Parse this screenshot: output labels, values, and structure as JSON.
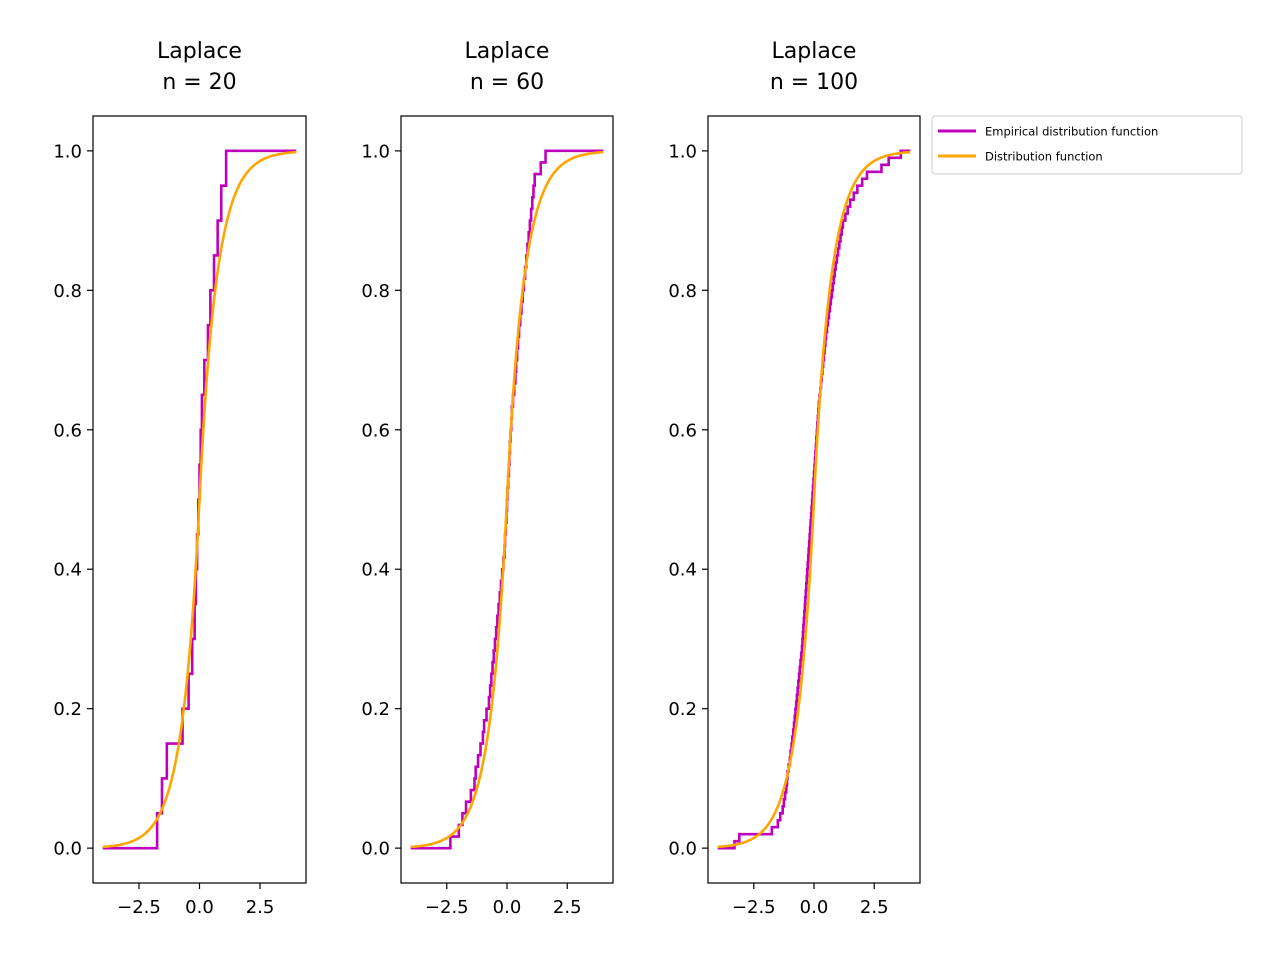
{
  "colors": {
    "ecdf": "#bf00bf",
    "cdf": "#ffa500",
    "axes": "#000000",
    "legend_border": "#cccccc"
  },
  "legend": {
    "placement": "outside-right-top",
    "entries": [
      "Empirical distribution function",
      "Distribution function"
    ]
  },
  "chart_data": [
    {
      "type": "line",
      "title": "Laplace\nn = 20",
      "title_lines": [
        "Laplace",
        "n = 20"
      ],
      "xlabel": "",
      "ylabel": "",
      "xlim": [
        -4.4,
        4.4
      ],
      "ylim": [
        -0.05,
        1.05
      ],
      "xticks": [
        -2.5,
        0.0,
        2.5
      ],
      "xtick_labels": [
        "−2.5",
        "0.0",
        "2.5"
      ],
      "yticks": [
        0.0,
        0.2,
        0.4,
        0.6,
        0.8,
        1.0
      ],
      "ytick_labels": [
        "0.0",
        "0.2",
        "0.4",
        "0.6",
        "0.8",
        "1.0"
      ],
      "grid": false,
      "x_range": [
        -4,
        4
      ],
      "series": [
        {
          "name": "Empirical distribution function",
          "kind": "step",
          "sample": [
            -1.75,
            -1.55,
            -1.35,
            -0.7,
            -0.45,
            -0.3,
            -0.2,
            -0.15,
            -0.1,
            -0.05,
            0.0,
            0.05,
            0.1,
            0.2,
            0.35,
            0.45,
            0.6,
            0.75,
            0.9,
            1.1
          ]
        },
        {
          "name": "Distribution function",
          "kind": "laplace_cdf",
          "loc": 0,
          "scale": 0.7071
        }
      ]
    },
    {
      "type": "line",
      "title": "Laplace\nn = 60",
      "title_lines": [
        "Laplace",
        "n = 60"
      ],
      "xlabel": "",
      "ylabel": "",
      "xlim": [
        -4.4,
        4.4
      ],
      "ylim": [
        -0.05,
        1.05
      ],
      "xticks": [
        -2.5,
        0.0,
        2.5
      ],
      "xtick_labels": [
        "−2.5",
        "0.0",
        "2.5"
      ],
      "yticks": [
        0.0,
        0.2,
        0.4,
        0.6,
        0.8,
        1.0
      ],
      "ytick_labels": [
        "0.0",
        "0.2",
        "0.4",
        "0.6",
        "0.8",
        "1.0"
      ],
      "grid": false,
      "x_range": [
        -4,
        4
      ],
      "series": [
        {
          "name": "Empirical distribution function",
          "kind": "step",
          "sample": [
            -2.35,
            -2.0,
            -1.85,
            -1.7,
            -1.5,
            -1.35,
            -1.3,
            -1.2,
            -1.1,
            -1.0,
            -0.95,
            -0.85,
            -0.75,
            -0.7,
            -0.65,
            -0.6,
            -0.55,
            -0.5,
            -0.45,
            -0.4,
            -0.35,
            -0.3,
            -0.25,
            -0.2,
            -0.15,
            -0.1,
            -0.08,
            -0.05,
            -0.02,
            0.0,
            0.02,
            0.05,
            0.08,
            0.1,
            0.12,
            0.15,
            0.18,
            0.2,
            0.25,
            0.3,
            0.35,
            0.38,
            0.42,
            0.46,
            0.5,
            0.55,
            0.6,
            0.65,
            0.7,
            0.75,
            0.8,
            0.85,
            0.9,
            0.95,
            1.0,
            1.05,
            1.1,
            1.15,
            1.4,
            1.6
          ]
        },
        {
          "name": "Distribution function",
          "kind": "laplace_cdf",
          "loc": 0,
          "scale": 0.7071
        }
      ]
    },
    {
      "type": "line",
      "title": "Laplace\nn = 100",
      "title_lines": [
        "Laplace",
        "n = 100"
      ],
      "xlabel": "",
      "ylabel": "",
      "xlim": [
        -4.4,
        4.4
      ],
      "ylim": [
        -0.05,
        1.05
      ],
      "xticks": [
        -2.5,
        0.0,
        2.5
      ],
      "xtick_labels": [
        "−2.5",
        "0.0",
        "2.5"
      ],
      "yticks": [
        0.0,
        0.2,
        0.4,
        0.6,
        0.8,
        1.0
      ],
      "ytick_labels": [
        "0.0",
        "0.2",
        "0.4",
        "0.6",
        "0.8",
        "1.0"
      ],
      "grid": false,
      "x_range": [
        -4,
        4
      ],
      "series": [
        {
          "name": "Empirical distribution function",
          "kind": "step",
          "sample": [
            -3.3,
            -3.1,
            -1.75,
            -1.5,
            -1.4,
            -1.3,
            -1.25,
            -1.2,
            -1.15,
            -1.12,
            -1.1,
            -1.05,
            -1.0,
            -0.97,
            -0.93,
            -0.9,
            -0.86,
            -0.83,
            -0.8,
            -0.77,
            -0.74,
            -0.71,
            -0.68,
            -0.65,
            -0.62,
            -0.59,
            -0.56,
            -0.53,
            -0.5,
            -0.48,
            -0.46,
            -0.44,
            -0.42,
            -0.4,
            -0.38,
            -0.36,
            -0.34,
            -0.32,
            -0.3,
            -0.28,
            -0.26,
            -0.24,
            -0.22,
            -0.2,
            -0.18,
            -0.16,
            -0.14,
            -0.12,
            -0.1,
            -0.08,
            -0.06,
            -0.04,
            -0.02,
            0.0,
            0.02,
            0.04,
            0.06,
            0.08,
            0.1,
            0.12,
            0.14,
            0.16,
            0.18,
            0.2,
            0.23,
            0.26,
            0.29,
            0.32,
            0.35,
            0.38,
            0.41,
            0.44,
            0.47,
            0.5,
            0.54,
            0.58,
            0.62,
            0.66,
            0.7,
            0.74,
            0.78,
            0.82,
            0.86,
            0.9,
            0.95,
            1.0,
            1.05,
            1.1,
            1.15,
            1.2,
            1.3,
            1.4,
            1.5,
            1.65,
            1.8,
            2.0,
            2.2,
            2.8,
            3.1,
            3.6
          ]
        },
        {
          "name": "Distribution function",
          "kind": "laplace_cdf",
          "loc": 0,
          "scale": 0.7071
        }
      ]
    }
  ]
}
